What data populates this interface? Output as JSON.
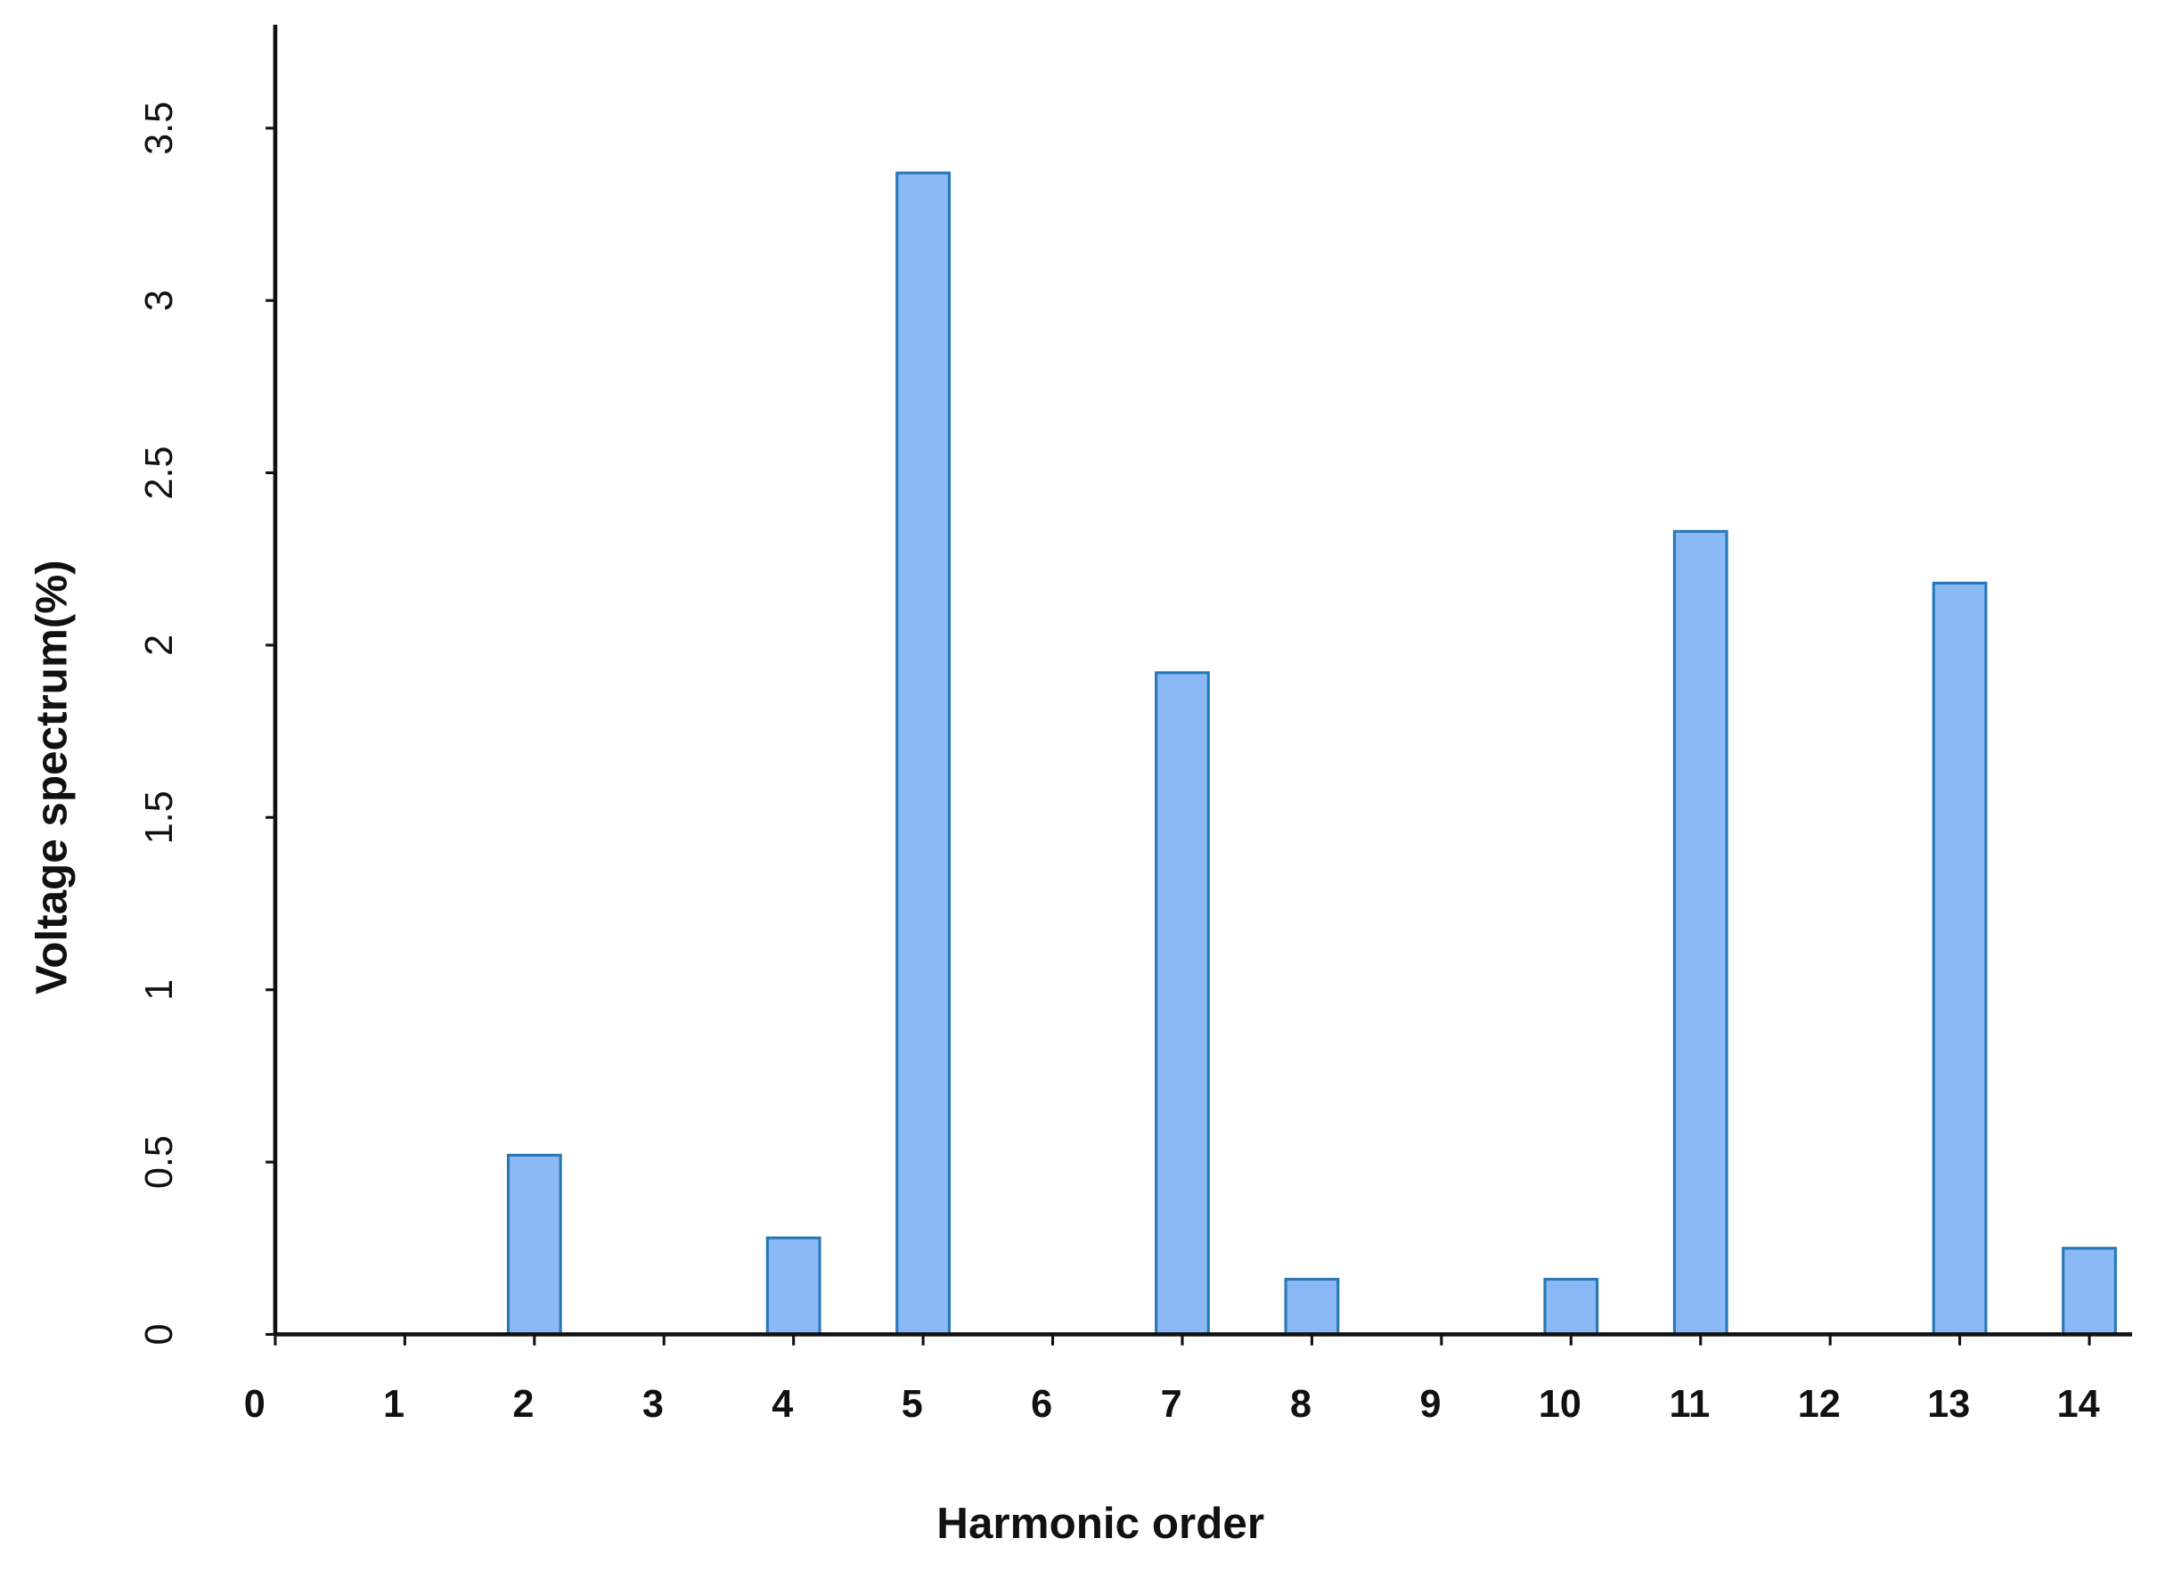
{
  "chart_data": {
    "type": "bar",
    "x_label": "Harmonic order",
    "y_label": "Voltage spectrum(%)",
    "x": [
      1,
      2,
      3,
      4,
      5,
      6,
      7,
      8,
      9,
      10,
      11,
      12,
      13,
      14
    ],
    "values": [
      0,
      0.52,
      0,
      0.28,
      3.37,
      0,
      1.92,
      0.16,
      0,
      0.16,
      2.33,
      0,
      2.18,
      0.25
    ],
    "color": "#8bb9f6",
    "edge_color": "#2577b5",
    "xlim": [
      0,
      14.33
    ],
    "xticks": [
      0,
      1,
      2,
      3,
      4,
      5,
      6,
      7,
      8,
      9,
      10,
      11,
      12,
      13,
      14
    ],
    "ylim": [
      0,
      3.8
    ],
    "yticks": [
      0,
      0.5,
      1,
      1.5,
      2,
      2.5,
      3,
      3.5
    ],
    "grid": false
  }
}
